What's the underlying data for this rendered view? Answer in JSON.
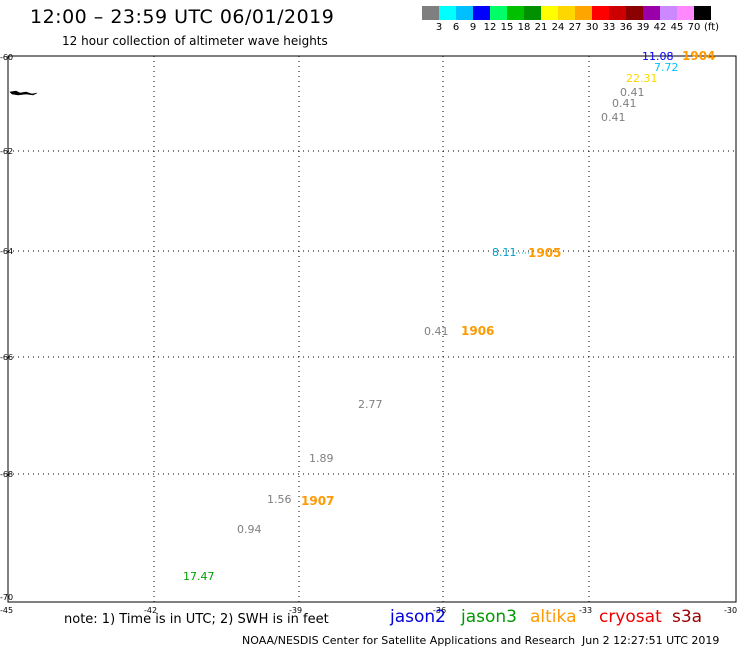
{
  "header": {
    "title": "12:00 – 23:59 UTC 06/01/2019",
    "subtitle": "12 hour collection of altimeter wave heights"
  },
  "colorbar": {
    "swatches": [
      "#7f7f7f",
      "#00ffff",
      "#00bfff",
      "#0000ff",
      "#00ff66",
      "#00c000",
      "#009000",
      "#ffff00",
      "#ffd700",
      "#ffa500",
      "#ff0000",
      "#cc0000",
      "#8b0000",
      "#9900aa",
      "#cc88ff",
      "#ff88ff",
      "#000000"
    ],
    "labels": [
      "3",
      "6",
      "9",
      "12",
      "15",
      "18",
      "21",
      "24",
      "27",
      "30",
      "33",
      "36",
      "39",
      "42",
      "45",
      "70"
    ],
    "unit": "(ft)"
  },
  "map": {
    "lon_ticks": [
      "-42",
      "-39",
      "-36",
      "-33"
    ],
    "lat_ticks": [
      "-62",
      "-64",
      "-66",
      "-68",
      "-70"
    ],
    "top_left_corner": "-60",
    "bottom_left_corner": "-45",
    "bottom_right_corner": "-30"
  },
  "chart_data": {
    "type": "scatter",
    "x_axis": {
      "label": "",
      "ticks": [
        -42,
        -39,
        -36,
        -33
      ]
    },
    "y_axis": {
      "label": "",
      "ticks": [
        -62,
        -64,
        -66,
        -68,
        -70
      ]
    },
    "grid": true,
    "points": [
      {
        "label": "11.08",
        "color": "#0000ff"
      },
      {
        "label": "7.72",
        "color": "#00bfff"
      },
      {
        "label": "22.31",
        "color": "#ffd700"
      },
      {
        "label": "0.41",
        "color": "#7f7f7f"
      },
      {
        "label": "0.41",
        "color": "#7f7f7f"
      },
      {
        "label": "0.41",
        "color": "#7f7f7f"
      },
      {
        "label": "8.11",
        "color": "#00a0c8"
      },
      {
        "label": "0.41",
        "color": "#7f7f7f"
      },
      {
        "label": "2.77",
        "color": "#7f7f7f"
      },
      {
        "label": "1.89",
        "color": "#7f7f7f"
      },
      {
        "label": "1.56",
        "color": "#7f7f7f"
      },
      {
        "label": "0.94",
        "color": "#7f7f7f"
      },
      {
        "label": "17.47",
        "color": "#00a000"
      }
    ],
    "time_labels": [
      "1904",
      "1905",
      "1906",
      "1907"
    ],
    "time_label_color": "#ff9900"
  },
  "footer": {
    "note": "note: 1) Time is in UTC; 2) SWH is in feet",
    "satellites": [
      {
        "name": "jason2",
        "color": "#0000dd"
      },
      {
        "name": "jason3",
        "color": "#009900"
      },
      {
        "name": "altika",
        "color": "#ff9900"
      },
      {
        "name": "cryosat",
        "color": "#ee0000"
      },
      {
        "name": "s3a",
        "color": "#990000"
      }
    ],
    "credit": "NOAA/NESDIS Center for Satellite Applications and Research",
    "timestamp": "Jun  2 12:27:51 UTC 2019"
  }
}
